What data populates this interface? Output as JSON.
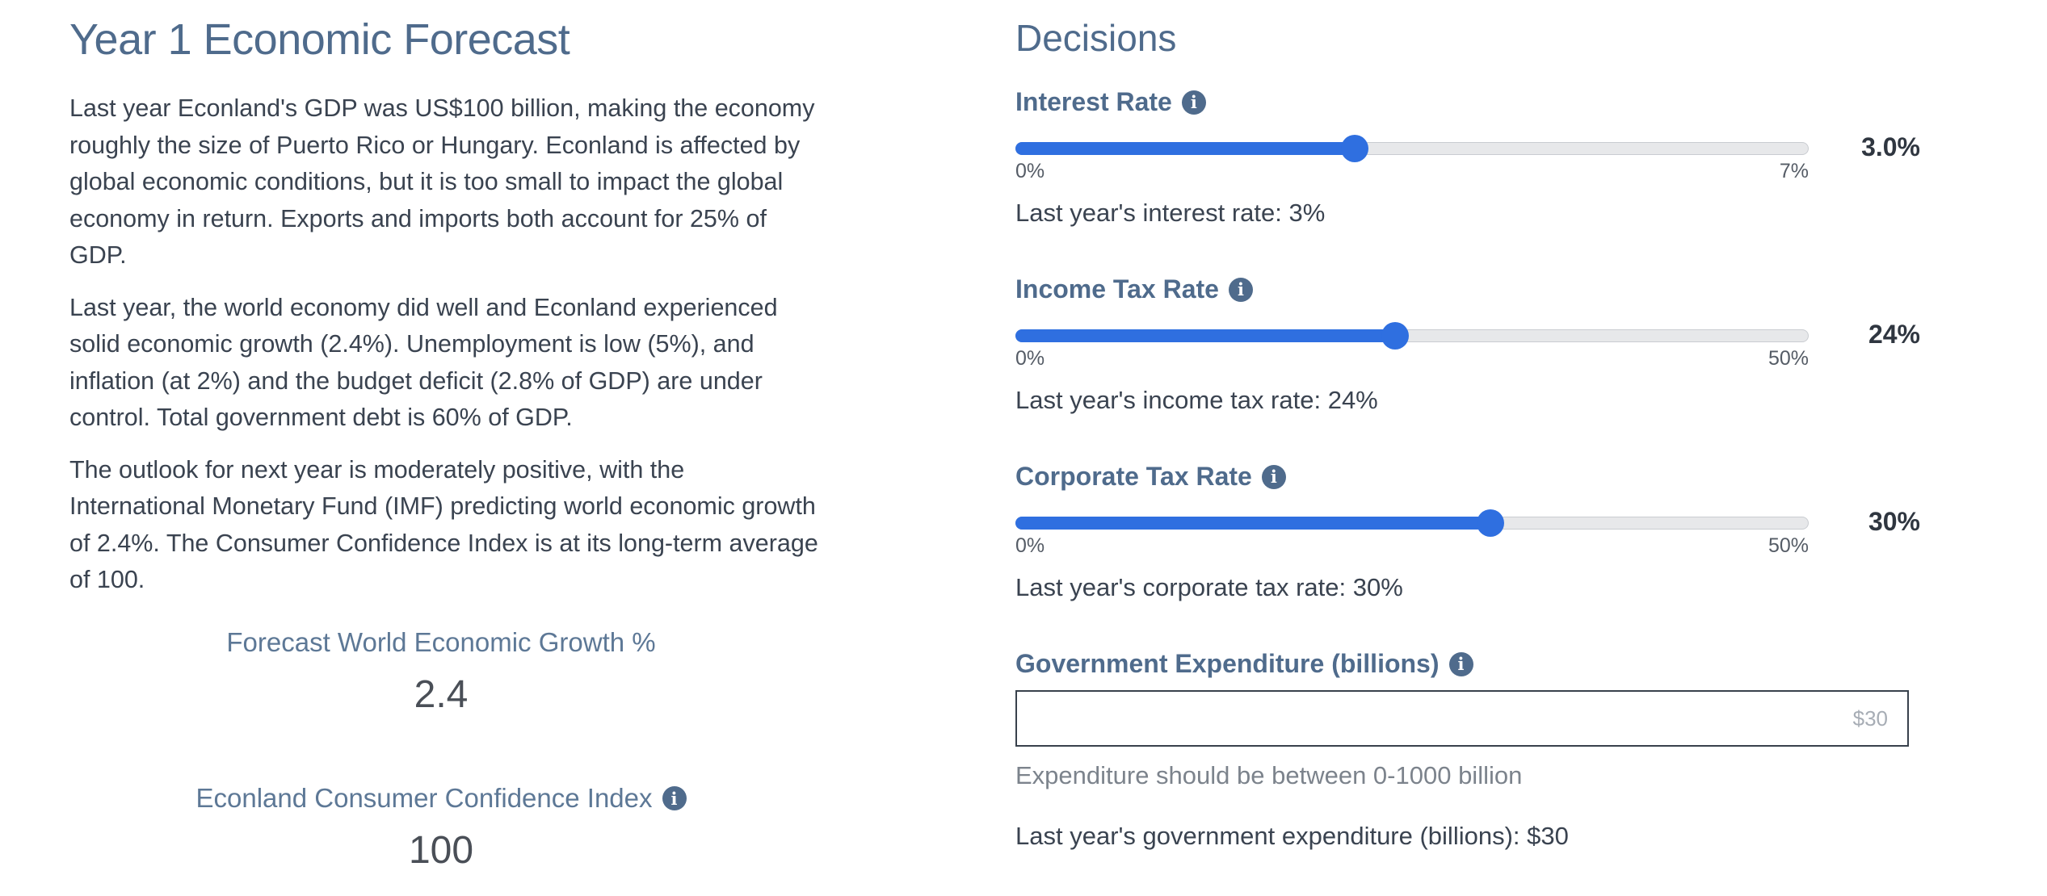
{
  "forecast": {
    "title": "Year 1 Economic Forecast",
    "paragraphs": [
      "Last year Econland's GDP was US$100 billion, making the economy roughly the size of Puerto Rico or Hungary. Econland is affected by global economic conditions, but it is too small to impact the global economy in return. Exports and imports both account for 25% of GDP.",
      "Last year, the world economy did well and Econland experienced solid economic growth (2.4%). Unemployment is low (5%), and inflation (at 2%) and the budget deficit (2.8% of GDP) are under control. Total government debt is 60% of GDP.",
      "The outlook for next year is moderately positive, with the International Monetary Fund (IMF) predicting world economic growth of 2.4%. The Consumer Confidence Index is at its long-term average of 100."
    ],
    "world_growth": {
      "label": "Forecast World Economic Growth %",
      "value": "2.4"
    },
    "consumer_confidence": {
      "label": "Econland Consumer Confidence Index",
      "value": "100",
      "icon": "info-icon"
    }
  },
  "decisions": {
    "title": "Decisions",
    "interest_rate": {
      "label": "Interest Rate",
      "icon": "info-icon",
      "min_label": "0%",
      "max_label": "7%",
      "min": 0,
      "max": 7,
      "current": 3.0,
      "value_display": "3.0%",
      "last_year": "Last year's interest rate: 3%"
    },
    "income_tax": {
      "label": "Income Tax Rate",
      "icon": "info-icon",
      "min_label": "0%",
      "max_label": "50%",
      "min": 0,
      "max": 50,
      "current": 24,
      "value_display": "24%",
      "last_year": "Last year's income tax rate: 24%"
    },
    "corporate_tax": {
      "label": "Corporate Tax Rate",
      "icon": "info-icon",
      "min_label": "0%",
      "max_label": "50%",
      "min": 0,
      "max": 50,
      "current": 30,
      "value_display": "30%",
      "last_year": "Last year's corporate tax rate: 30%"
    },
    "expenditure": {
      "label": "Government Expenditure (billions)",
      "icon": "info-icon",
      "value": "",
      "placeholder": "$30",
      "help": "Expenditure should be between 0-1000 billion",
      "last_year": "Last year's government expenditure (billions): $30"
    }
  },
  "colors": {
    "accent": "#2f6fe0",
    "heading": "#4f6b8c",
    "text": "#3a4350"
  }
}
